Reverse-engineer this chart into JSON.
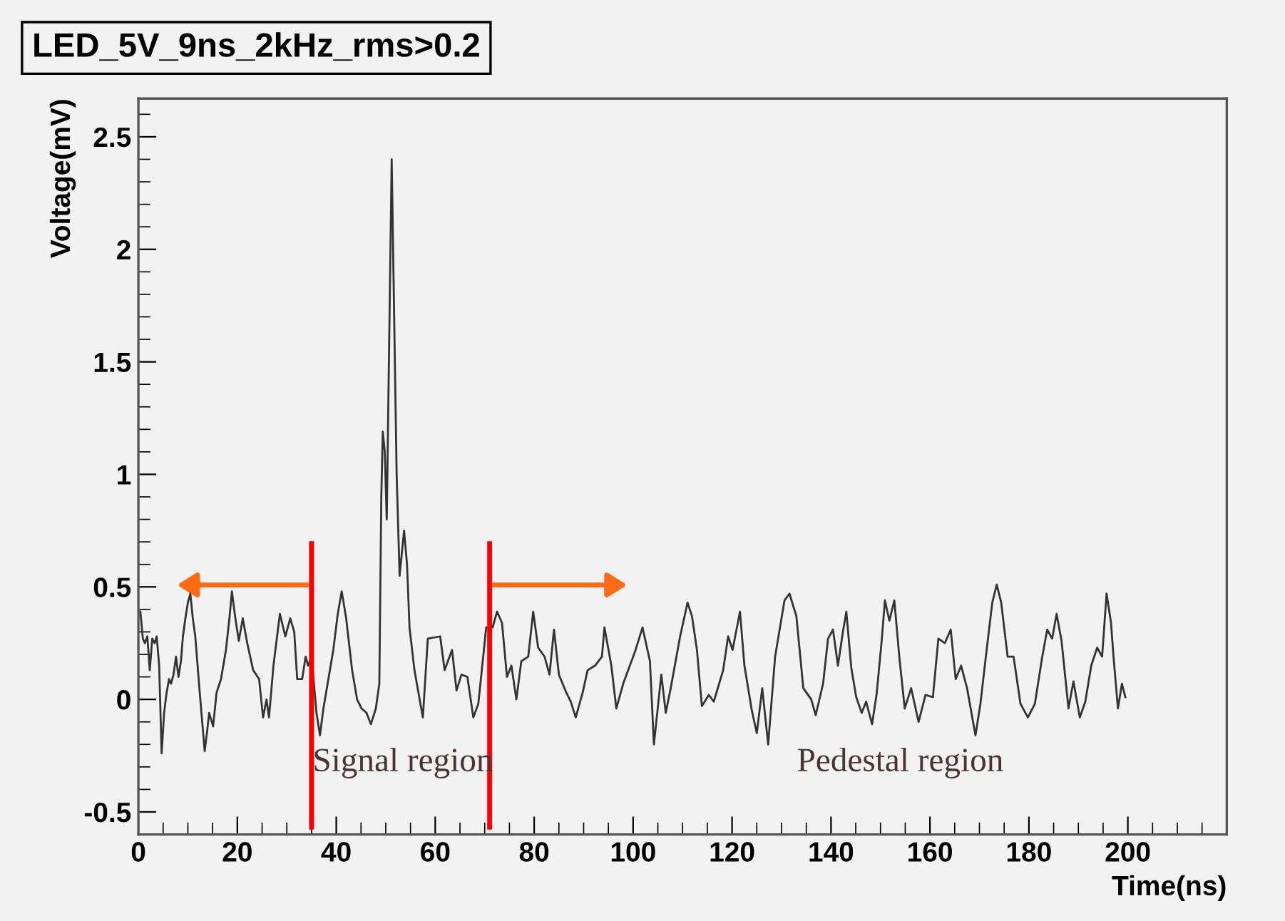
{
  "chart_data": {
    "type": "line",
    "title": "LED_5V_9ns_2kHz_rms>0.2",
    "xlabel": "Time(ns)",
    "ylabel": "Voltage(mV)",
    "xlim": [
      0,
      220
    ],
    "ylim": [
      -0.6,
      2.67
    ],
    "xticks": [
      0,
      20,
      40,
      60,
      80,
      100,
      120,
      140,
      160,
      180,
      200
    ],
    "yticks": [
      -0.5,
      0,
      0.5,
      1,
      1.5,
      2,
      2.5
    ],
    "grid": false,
    "legend": false,
    "marker": "none",
    "line_style": "solid",
    "series": [
      {
        "color": "#333333",
        "x": [
          0.4,
          0.9,
          1.3,
          1.8,
          2.3,
          2.8,
          3.3,
          3.7,
          4.2,
          4.7,
          5.2,
          5.7,
          6.2,
          6.6,
          7.1,
          7.6,
          8.1,
          8.6,
          9.0,
          9.5,
          10.0,
          10.5,
          11.0,
          11.5,
          12.4,
          13.4,
          13.9,
          14.3,
          15.1,
          15.8,
          16.7,
          17.7,
          18.4,
          18.9,
          19.6,
          20.3,
          21.1,
          22.0,
          23.2,
          24.4,
          25.2,
          25.9,
          26.4,
          27.3,
          28.6,
          29.7,
          30.7,
          31.5,
          32.1,
          33.1,
          33.8,
          34.3,
          35.0,
          36.0,
          36.7,
          37.4,
          38.4,
          39.4,
          40.3,
          41.1,
          42.0,
          43.2,
          44.2,
          45.1,
          46.1,
          47.0,
          48.0,
          48.7,
          49.1,
          49.4,
          49.8,
          50.2,
          51.2,
          52.2,
          52.8,
          53.7,
          54.3,
          54.8,
          55.8,
          57.5,
          58.5,
          61.0,
          61.9,
          63.4,
          64.3,
          65.3,
          66.5,
          67.7,
          68.7,
          69.7,
          70.3,
          71.6,
          72.5,
          73.5,
          74.5,
          75.4,
          76.4,
          77.4,
          78.8,
          79.8,
          80.8,
          82.1,
          83.1,
          84.0,
          85.0,
          86.5,
          87.4,
          88.4,
          89.8,
          90.8,
          92.3,
          93.7,
          94.2,
          95.6,
          96.6,
          98.0,
          100.5,
          101.9,
          103.4,
          104.2,
          105.7,
          106.6,
          107.6,
          109.5,
          111.0,
          111.9,
          112.9,
          113.9,
          115.3,
          116.3,
          118.2,
          119.2,
          120.1,
          121.6,
          122.5,
          124.0,
          125.0,
          126.1,
          127.3,
          128.7,
          130.6,
          131.6,
          133.0,
          134.4,
          136.0,
          136.9,
          138.4,
          139.4,
          140.4,
          141.4,
          142.4,
          143.1,
          144.1,
          145.1,
          146.2,
          147.1,
          148.3,
          149.2,
          150.2,
          150.9,
          151.8,
          152.8,
          153.8,
          154.9,
          156.2,
          157.7,
          159.1,
          160.6,
          161.7,
          163.0,
          164.2,
          165.2,
          166.3,
          167.5,
          169.2,
          170.2,
          171.4,
          172.6,
          173.5,
          174.4,
          175.7,
          176.9,
          178.3,
          179.8,
          181.2,
          182.7,
          183.7,
          184.7,
          185.6,
          186.6,
          188.0,
          189.0,
          190.3,
          191.4,
          192.6,
          193.8,
          194.8,
          195.7,
          196.6,
          197.1,
          198.0,
          198.8,
          199.5
        ],
        "values": [
          0.39,
          0.27,
          0.25,
          0.28,
          0.13,
          0.27,
          0.25,
          0.28,
          0.15,
          -0.24,
          -0.06,
          0.03,
          0.09,
          0.07,
          0.11,
          0.19,
          0.1,
          0.17,
          0.28,
          0.36,
          0.43,
          0.47,
          0.36,
          0.28,
          0.03,
          -0.23,
          -0.14,
          -0.06,
          -0.12,
          0.03,
          0.09,
          0.22,
          0.36,
          0.48,
          0.36,
          0.26,
          0.36,
          0.25,
          0.13,
          0.09,
          -0.08,
          0.0,
          -0.08,
          0.15,
          0.38,
          0.28,
          0.36,
          0.3,
          0.09,
          0.09,
          0.19,
          0.15,
          0.19,
          -0.06,
          -0.16,
          -0.04,
          0.09,
          0.22,
          0.38,
          0.48,
          0.36,
          0.13,
          0.0,
          -0.04,
          -0.06,
          -0.11,
          -0.04,
          0.07,
          0.9,
          1.19,
          1.1,
          0.8,
          2.4,
          1.0,
          0.55,
          0.75,
          0.6,
          0.32,
          0.13,
          -0.08,
          0.27,
          0.28,
          0.13,
          0.22,
          0.04,
          0.11,
          0.1,
          -0.08,
          -0.02,
          0.19,
          0.32,
          0.32,
          0.39,
          0.34,
          0.1,
          0.15,
          0.0,
          0.17,
          0.19,
          0.39,
          0.23,
          0.19,
          0.11,
          0.31,
          0.11,
          0.03,
          -0.01,
          -0.08,
          0.03,
          0.13,
          0.15,
          0.19,
          0.32,
          0.15,
          -0.04,
          0.07,
          0.22,
          0.32,
          0.17,
          -0.2,
          0.11,
          -0.06,
          0.05,
          0.28,
          0.43,
          0.37,
          0.22,
          -0.03,
          0.02,
          -0.01,
          0.13,
          0.28,
          0.22,
          0.39,
          0.15,
          -0.05,
          -0.15,
          0.05,
          -0.2,
          0.19,
          0.44,
          0.47,
          0.37,
          0.05,
          0.0,
          -0.07,
          0.07,
          0.27,
          0.31,
          0.15,
          0.3,
          0.39,
          0.14,
          0.01,
          -0.06,
          -0.01,
          -0.11,
          0.02,
          0.25,
          0.44,
          0.35,
          0.44,
          0.19,
          -0.04,
          0.05,
          -0.1,
          0.02,
          0.01,
          0.27,
          0.25,
          0.31,
          0.09,
          0.15,
          0.05,
          -0.16,
          -0.02,
          0.21,
          0.43,
          0.51,
          0.43,
          0.19,
          0.19,
          -0.02,
          -0.08,
          -0.02,
          0.19,
          0.31,
          0.27,
          0.38,
          0.26,
          -0.04,
          0.08,
          -0.08,
          -0.01,
          0.15,
          0.23,
          0.19,
          0.47,
          0.34,
          0.19,
          -0.04,
          0.07,
          0.01
        ]
      }
    ],
    "ref_lines": [
      {
        "axis": "x",
        "value": 35,
        "color": "#ff0000"
      },
      {
        "axis": "x",
        "value": 71,
        "color": "#ff0000"
      }
    ],
    "annotations": [
      "Signal region",
      "Pedestal region"
    ]
  }
}
